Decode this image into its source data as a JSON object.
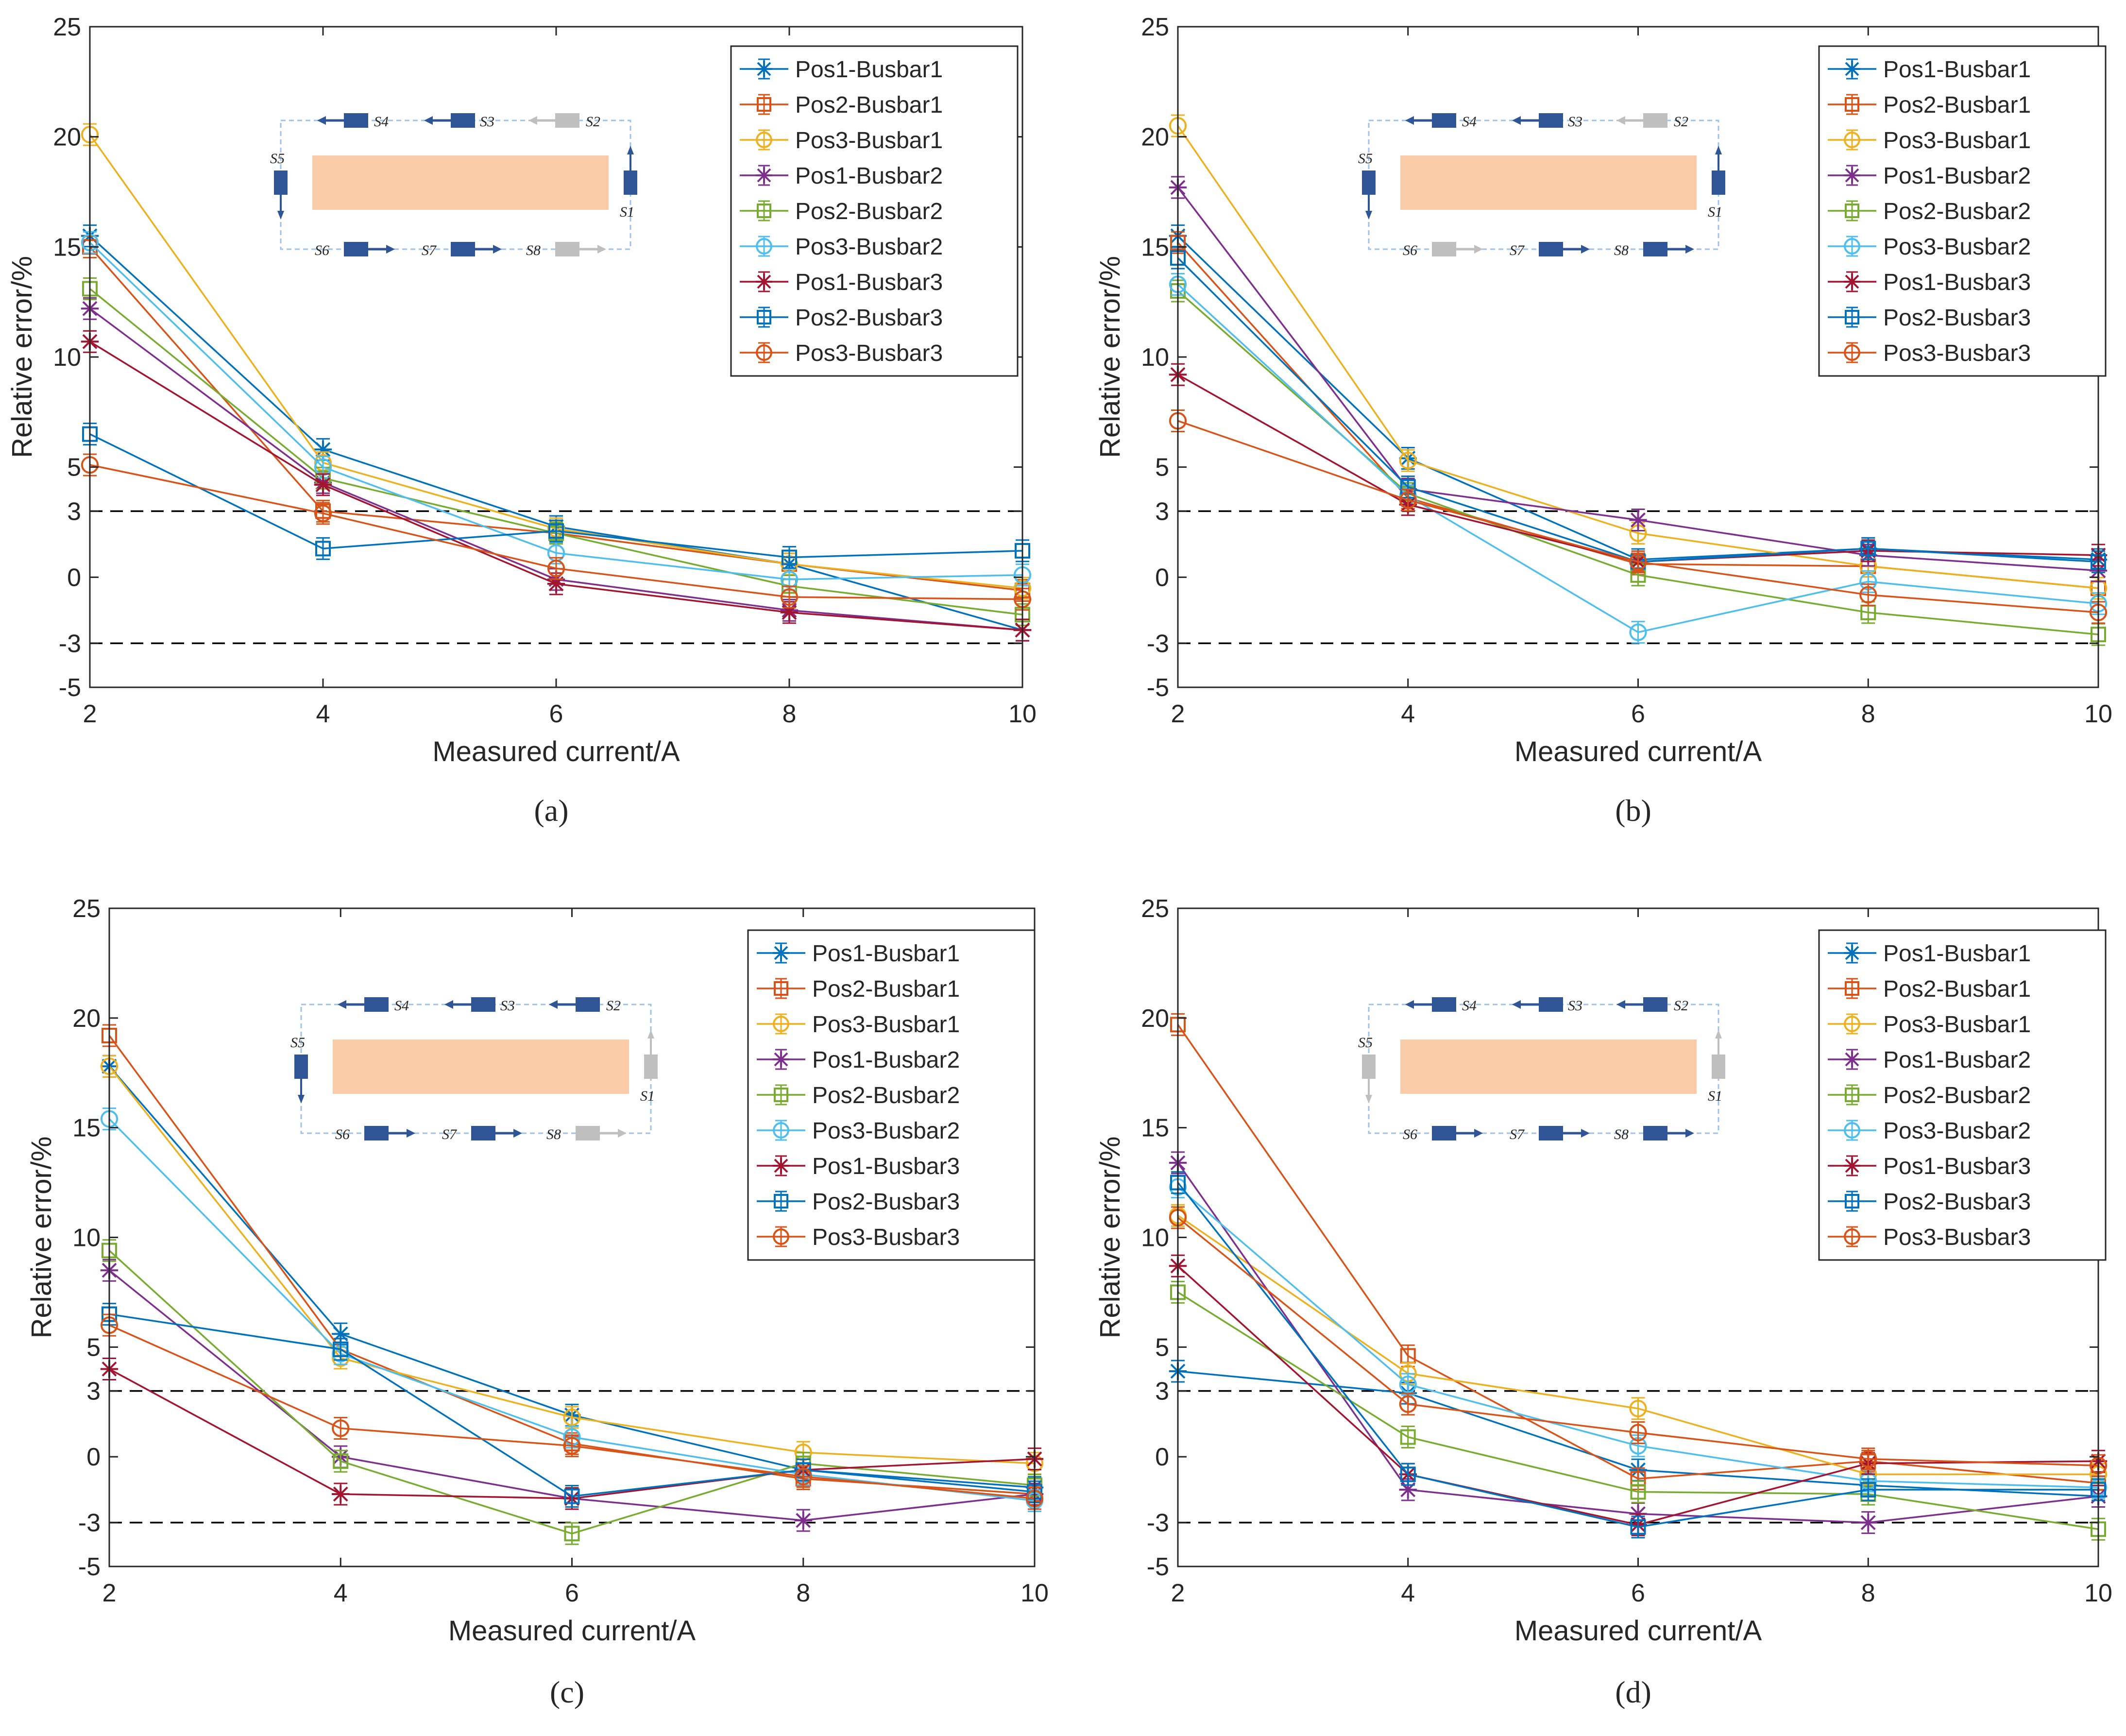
{
  "chart_data": [
    {
      "panel": "a",
      "caption": "(a)",
      "type": "line",
      "xlabel": "Measured current/A",
      "ylabel": "Relative error/%",
      "x": [
        2,
        4,
        6,
        8,
        10
      ],
      "xticks": [
        "2",
        "4",
        "6",
        "8",
        "10"
      ],
      "yticks": [
        "-5",
        "-3",
        "0",
        "3",
        "5",
        "10",
        "15",
        "20",
        "25"
      ],
      "xlim": [
        2,
        10
      ],
      "ylim": [
        -5,
        25
      ],
      "reference_lines": [
        3,
        -3
      ],
      "legend_position": "top-right",
      "series": [
        {
          "name": "Pos1-Busbar1",
          "values": [
            15.5,
            5.8,
            2.3,
            0.6,
            -2.4
          ]
        },
        {
          "name": "Pos2-Busbar1",
          "values": [
            15.0,
            3.0,
            2.0,
            0.6,
            -0.6
          ]
        },
        {
          "name": "Pos3-Busbar1",
          "values": [
            20.1,
            5.2,
            2.2,
            0.6,
            -0.5
          ]
        },
        {
          "name": "Pos1-Busbar2",
          "values": [
            12.2,
            4.3,
            -0.1,
            -1.5,
            -2.4
          ]
        },
        {
          "name": "Pos2-Busbar2",
          "values": [
            13.1,
            4.5,
            2.0,
            -0.4,
            -1.7
          ]
        },
        {
          "name": "Pos3-Busbar2",
          "values": [
            15.2,
            5.0,
            1.1,
            -0.1,
            0.1
          ]
        },
        {
          "name": "Pos1-Busbar3",
          "values": [
            10.7,
            4.2,
            -0.3,
            -1.6,
            -2.4
          ]
        },
        {
          "name": "Pos2-Busbar3",
          "values": [
            6.5,
            1.3,
            2.1,
            0.9,
            1.2
          ]
        },
        {
          "name": "Pos3-Busbar3",
          "values": [
            5.1,
            2.9,
            0.4,
            -0.9,
            -1.0
          ]
        }
      ],
      "inset": {
        "sensors": [
          "S1",
          "S2",
          "S3",
          "S4",
          "S5",
          "S6",
          "S7",
          "S8"
        ],
        "sensor_states": [
          "on",
          "off",
          "on",
          "on",
          "on",
          "on",
          "on",
          "off"
        ]
      }
    },
    {
      "panel": "b",
      "caption": "(b)",
      "type": "line",
      "xlabel": "Measured current/A",
      "ylabel": "Relative error/%",
      "x": [
        2,
        4,
        6,
        8,
        10
      ],
      "xticks": [
        "2",
        "4",
        "6",
        "8",
        "10"
      ],
      "yticks": [
        "-5",
        "-3",
        "0",
        "3",
        "5",
        "10",
        "15",
        "20",
        "25"
      ],
      "xlim": [
        2,
        10
      ],
      "ylim": [
        -5,
        25
      ],
      "reference_lines": [
        3,
        -3
      ],
      "legend_position": "top-right",
      "series": [
        {
          "name": "Pos1-Busbar1",
          "values": [
            15.5,
            5.4,
            0.8,
            1.3,
            0.8
          ]
        },
        {
          "name": "Pos2-Busbar1",
          "values": [
            15.2,
            3.6,
            0.6,
            0.5,
            -0.5
          ]
        },
        {
          "name": "Pos3-Busbar1",
          "values": [
            20.5,
            5.3,
            2.0,
            0.5,
            -0.5
          ]
        },
        {
          "name": "Pos1-Busbar2",
          "values": [
            17.7,
            4.0,
            2.6,
            1.0,
            0.3
          ]
        },
        {
          "name": "Pos2-Busbar2",
          "values": [
            13.0,
            3.8,
            0.1,
            -1.6,
            -2.6
          ]
        },
        {
          "name": "Pos3-Busbar2",
          "values": [
            13.3,
            3.7,
            -2.5,
            -0.2,
            -1.2
          ]
        },
        {
          "name": "Pos1-Busbar3",
          "values": [
            9.2,
            3.3,
            0.7,
            1.2,
            1.0
          ]
        },
        {
          "name": "Pos2-Busbar3",
          "values": [
            14.5,
            4.1,
            0.7,
            1.3,
            0.7
          ]
        },
        {
          "name": "Pos3-Busbar3",
          "values": [
            7.1,
            3.5,
            0.7,
            -0.8,
            -1.6
          ]
        }
      ],
      "inset": {
        "sensors": [
          "S1",
          "S2",
          "S3",
          "S4",
          "S5",
          "S6",
          "S7",
          "S8"
        ],
        "sensor_states": [
          "on",
          "off",
          "on",
          "on",
          "on",
          "off",
          "on",
          "on"
        ]
      }
    },
    {
      "panel": "c",
      "caption": "(c)",
      "type": "line",
      "xlabel": "Measured current/A",
      "ylabel": "Relative error/%",
      "x": [
        2,
        4,
        6,
        8,
        10
      ],
      "xticks": [
        "2",
        "4",
        "6",
        "8",
        "10"
      ],
      "yticks": [
        "-5",
        "-3",
        "0",
        "3",
        "5",
        "10",
        "15",
        "20",
        "25"
      ],
      "xlim": [
        2,
        10
      ],
      "ylim": [
        -5,
        25
      ],
      "reference_lines": [
        3,
        -3
      ],
      "legend_position": "top-right",
      "series": [
        {
          "name": "Pos1-Busbar1",
          "values": [
            17.8,
            5.6,
            1.9,
            -0.6,
            -1.4
          ]
        },
        {
          "name": "Pos2-Busbar1",
          "values": [
            19.2,
            4.9,
            0.6,
            -1.0,
            -1.7
          ]
        },
        {
          "name": "Pos3-Busbar1",
          "values": [
            17.8,
            4.5,
            1.8,
            0.2,
            -0.3
          ]
        },
        {
          "name": "Pos1-Busbar2",
          "values": [
            8.5,
            0.0,
            -1.9,
            -2.9,
            -1.7
          ]
        },
        {
          "name": "Pos2-Busbar2",
          "values": [
            9.4,
            -0.2,
            -3.5,
            -0.3,
            -1.3
          ]
        },
        {
          "name": "Pos3-Busbar2",
          "values": [
            15.4,
            4.7,
            0.9,
            -0.8,
            -2.0
          ]
        },
        {
          "name": "Pos1-Busbar3",
          "values": [
            4.0,
            -1.7,
            -1.9,
            -0.6,
            -0.1
          ]
        },
        {
          "name": "Pos2-Busbar3",
          "values": [
            6.5,
            4.9,
            -1.8,
            -0.6,
            -1.6
          ]
        },
        {
          "name": "Pos3-Busbar3",
          "values": [
            6.0,
            1.3,
            0.5,
            -0.9,
            -1.9
          ]
        }
      ],
      "inset": {
        "sensors": [
          "S1",
          "S2",
          "S3",
          "S4",
          "S5",
          "S6",
          "S7",
          "S8"
        ],
        "sensor_states": [
          "off",
          "on",
          "on",
          "on",
          "on",
          "on",
          "on",
          "off"
        ]
      }
    },
    {
      "panel": "d",
      "caption": "(d)",
      "type": "line",
      "xlabel": "Measured current/A",
      "ylabel": "Relative error/%",
      "x": [
        2,
        4,
        6,
        8,
        10
      ],
      "xticks": [
        "2",
        "4",
        "6",
        "8",
        "10"
      ],
      "yticks": [
        "-5",
        "-3",
        "0",
        "3",
        "5",
        "10",
        "15",
        "20",
        "25"
      ],
      "xlim": [
        2,
        10
      ],
      "ylim": [
        -5,
        25
      ],
      "reference_lines": [
        3,
        -3
      ],
      "legend_position": "top-right",
      "series": [
        {
          "name": "Pos1-Busbar1",
          "values": [
            3.9,
            2.9,
            -0.6,
            -1.3,
            -1.8
          ]
        },
        {
          "name": "Pos2-Busbar1",
          "values": [
            19.7,
            4.6,
            -1.0,
            -0.2,
            -1.2
          ]
        },
        {
          "name": "Pos3-Busbar1",
          "values": [
            11.0,
            3.8,
            2.2,
            -0.8,
            -0.8
          ]
        },
        {
          "name": "Pos1-Busbar2",
          "values": [
            13.4,
            -1.5,
            -2.6,
            -3.0,
            -1.8
          ]
        },
        {
          "name": "Pos2-Busbar2",
          "values": [
            7.5,
            0.9,
            -1.6,
            -1.7,
            -3.3
          ]
        },
        {
          "name": "Pos3-Busbar2",
          "values": [
            12.3,
            3.3,
            0.5,
            -1.1,
            -1.4
          ]
        },
        {
          "name": "Pos1-Busbar3",
          "values": [
            8.7,
            -0.8,
            -3.1,
            -0.3,
            -0.2
          ]
        },
        {
          "name": "Pos2-Busbar3",
          "values": [
            12.5,
            -0.8,
            -3.2,
            -1.5,
            -1.5
          ]
        },
        {
          "name": "Pos3-Busbar3",
          "values": [
            10.9,
            2.4,
            1.1,
            -0.1,
            -0.4
          ]
        }
      ],
      "inset": {
        "sensors": [
          "S1",
          "S2",
          "S3",
          "S4",
          "S5",
          "S6",
          "S7",
          "S8"
        ],
        "sensor_states": [
          "off",
          "on",
          "on",
          "on",
          "off",
          "on",
          "on",
          "on"
        ]
      }
    }
  ],
  "colors": {
    "series": [
      "#0072BD",
      "#D95319",
      "#EDB120",
      "#7E2F8E",
      "#77AC30",
      "#4DBEEE",
      "#A2142F",
      "#0072BD",
      "#D95319"
    ],
    "sensor_on": "#2F5597",
    "sensor_off": "#BFBFBF",
    "busbar_fill": "#F9CBA7",
    "loop_dash": "#9DC3E6",
    "reference_line": "#000000"
  },
  "markers": [
    "asterisk",
    "square",
    "circle",
    "asterisk",
    "square",
    "circle",
    "asterisk",
    "square",
    "circle"
  ]
}
